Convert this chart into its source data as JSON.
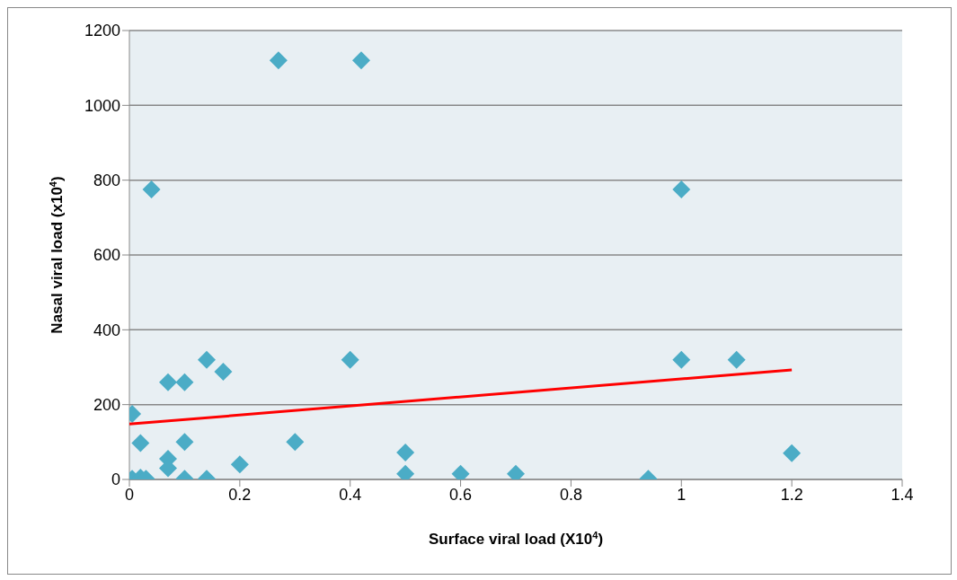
{
  "chart_data": {
    "type": "scatter",
    "xlabel": "Surface viral load (X10$^{4}$)",
    "ylabel": "Nasal viral load (x10$^{4}$)",
    "xlim": [
      0,
      1.4
    ],
    "xticks": [
      0,
      0.2,
      0.4,
      0.6,
      0.8,
      1,
      1.2,
      1.4
    ],
    "ylim": [
      0,
      1200
    ],
    "yticks": [
      0,
      200,
      400,
      600,
      800,
      1000,
      1200
    ],
    "grid": "y",
    "legend": false,
    "series": [
      {
        "color": "#4bacc6",
        "marker": "diamond",
        "x": [
          0.005,
          0.02,
          0.005,
          0.02,
          0.03,
          0.04,
          0.07,
          0.07,
          0.07,
          0.1,
          0.1,
          0.1,
          0.14,
          0.14,
          0.17,
          0.2,
          0.27,
          0.3,
          0.4,
          0.42,
          0.5,
          0.5,
          0.6,
          0.7,
          0.94,
          1,
          1,
          1.1,
          1.2
        ],
        "values": [
          175,
          97,
          2,
          5,
          2,
          775,
          260,
          55,
          30,
          260,
          100,
          2,
          320,
          2,
          288,
          40,
          1120,
          100,
          320,
          1120,
          72,
          15,
          15,
          15,
          2,
          775,
          320,
          320,
          70
        ]
      },
      {
        "type": "line",
        "color": "#ff0000",
        "marker": "none",
        "x": [
          0,
          1.2
        ],
        "values": [
          148,
          293
        ]
      }
    ]
  }
}
